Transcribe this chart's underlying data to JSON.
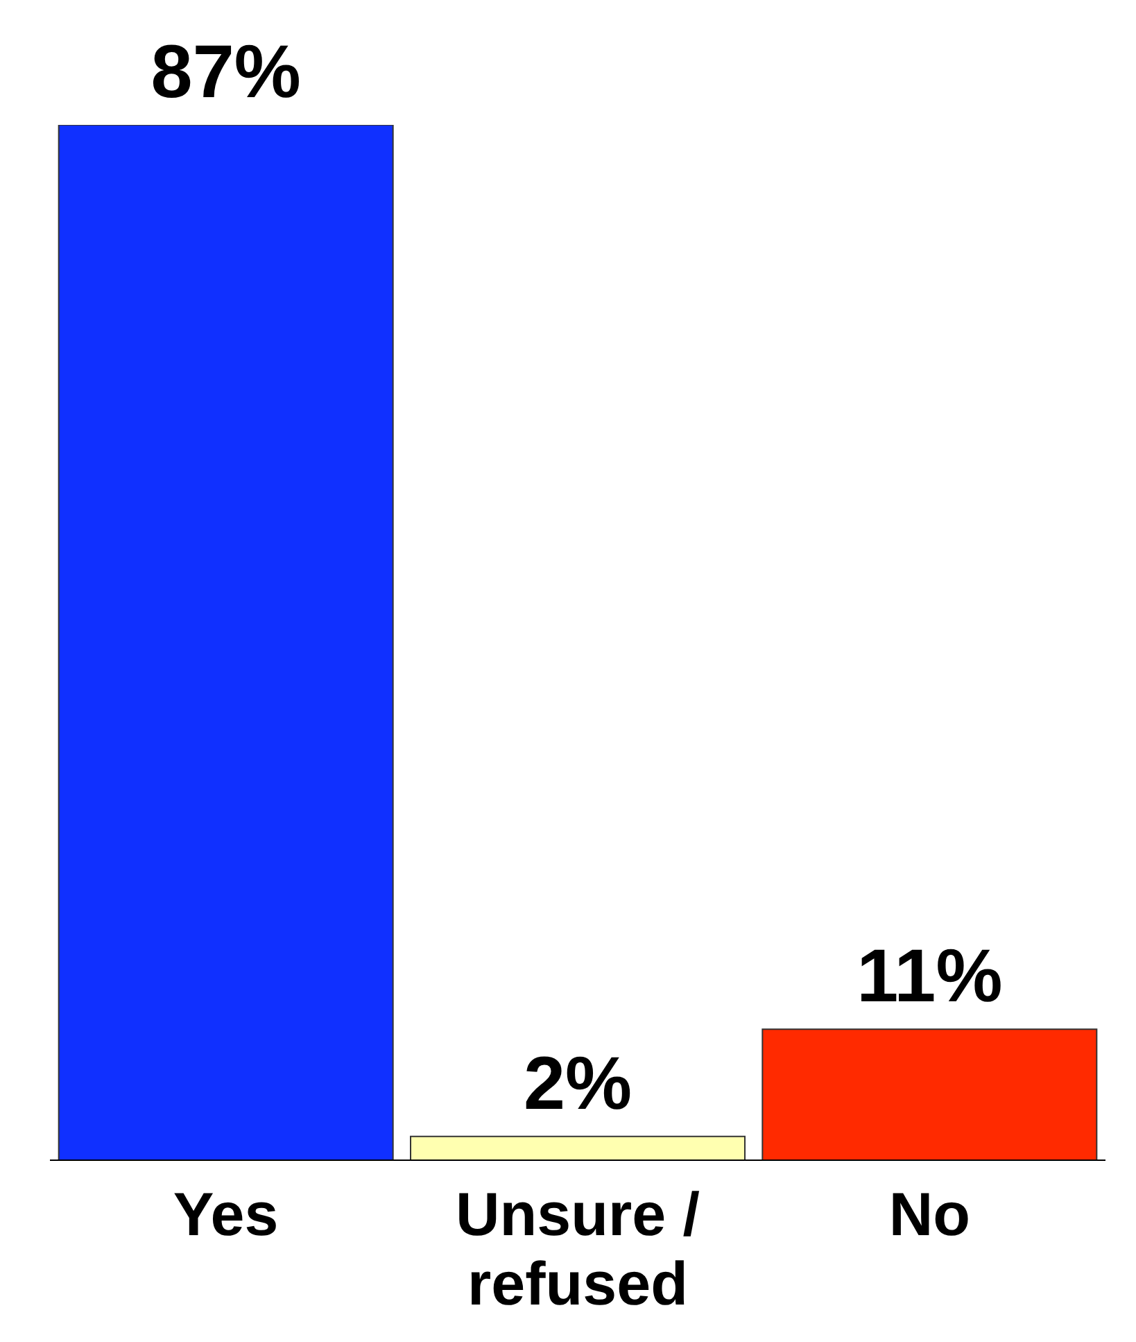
{
  "chart_data": {
    "type": "bar",
    "categories": [
      "Yes",
      "Unsure / refused",
      "No"
    ],
    "values": [
      87,
      2,
      11
    ],
    "colors": [
      "#1030ff",
      "#ffffb0",
      "#ff2a00"
    ],
    "value_labels": [
      "87%",
      "2%",
      "11%"
    ]
  }
}
